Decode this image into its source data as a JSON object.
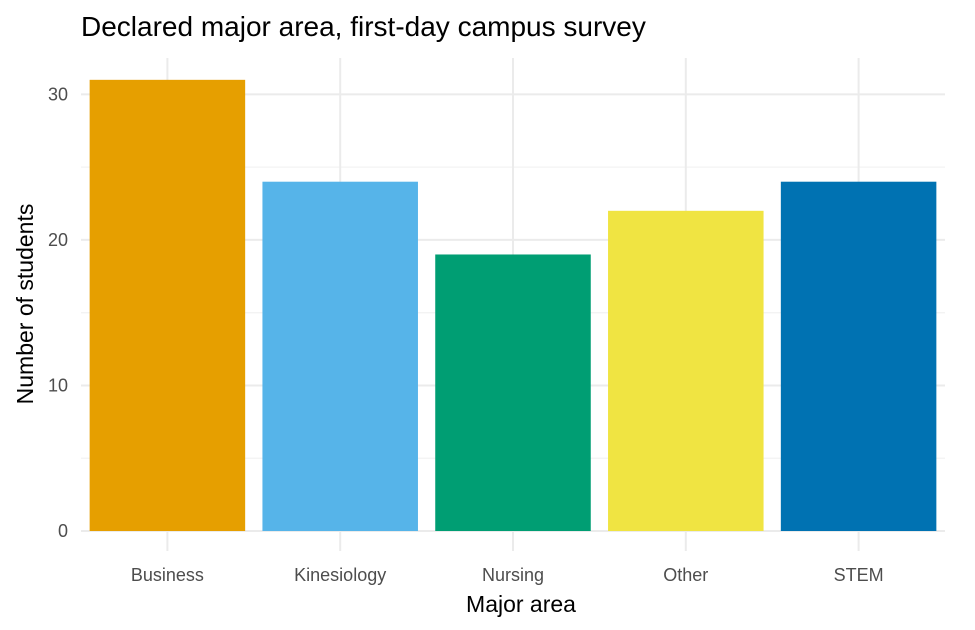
{
  "chart_data": {
    "type": "bar",
    "title": "Declared major area, first-day campus survey",
    "xlabel": "Major area",
    "ylabel": "Number of students",
    "categories": [
      "Business",
      "Kinesiology",
      "Nursing",
      "Other",
      "STEM"
    ],
    "values": [
      31,
      24,
      19,
      22,
      24
    ],
    "colors": [
      "#E69F00",
      "#56B4E9",
      "#009E73",
      "#F0E442",
      "#0072B2"
    ],
    "ylim": [
      0,
      32.5
    ],
    "yticks": [
      0,
      10,
      20,
      30
    ],
    "ytick_labels": [
      "0",
      "10",
      "20",
      "30"
    ],
    "grid": true,
    "legend": "none"
  }
}
